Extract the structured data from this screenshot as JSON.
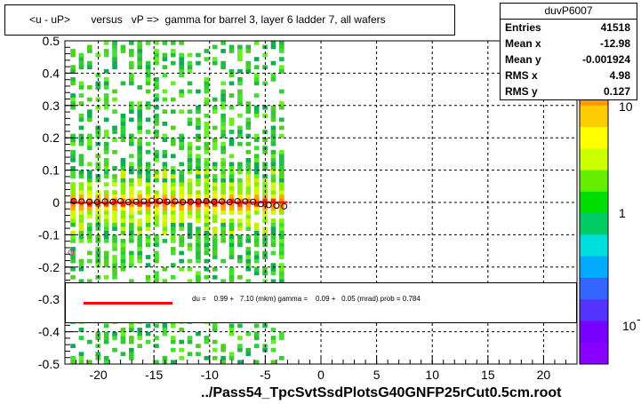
{
  "title": "<u - uP>       versus   vP =>  gamma for barrel 3, layer 6 ladder 7, all wafers",
  "footer": "../Pass54_TpcSvtSsdPlotsG40GNFP25rCut0.5cm.root",
  "stats": {
    "name": "duvP6007",
    "rows": [
      {
        "label": "Entries",
        "value": "41518"
      },
      {
        "label": "Mean x",
        "value": "-12.98"
      },
      {
        "label": "Mean y",
        "value": "-0.001924"
      },
      {
        "label": "RMS x",
        "value": "4.98"
      },
      {
        "label": "RMS y",
        "value": "0.127"
      }
    ]
  },
  "fit": {
    "text": "du =    0.99 +   7.10 (mkm) gamma =    0.09 +   0.05 (mrad) prob = 0.784",
    "line_color": "#ff0000"
  },
  "chart_data": {
    "type": "heatmap",
    "title": "<u - uP>       versus   vP =>  gamma for barrel 3, layer 6 ladder 7, all wafers",
    "xlim": [
      -23,
      23
    ],
    "ylim": [
      -0.5,
      0.5
    ],
    "x_ticks": [
      "-20",
      "-15",
      "-10",
      "-5",
      "0",
      "5",
      "10",
      "15",
      "20"
    ],
    "y_ticks": [
      "-0.5",
      "-0.4",
      "-0.3",
      "-0.2",
      "-0.1",
      "0",
      "0.1",
      "0.2",
      "0.3",
      "0.4",
      "0.5"
    ],
    "colorbar_labels": [
      "10",
      "1",
      "10"
    ],
    "colorbar_scale": "log",
    "grid": true,
    "data_x_range": [
      -22.5,
      -3
    ],
    "profile_points": {
      "x": [
        -22.2,
        -21.5,
        -20.8,
        -20.1,
        -19.4,
        -18.7,
        -18.0,
        -17.3,
        -16.6,
        -15.9,
        -15.2,
        -14.5,
        -13.8,
        -13.1,
        -12.4,
        -11.7,
        -11.0,
        -10.3,
        -9.6,
        -8.9,
        -8.2,
        -7.5,
        -6.8,
        -6.1,
        -5.4,
        -4.7,
        -4.0,
        -3.3
      ],
      "y": [
        0.004,
        0.003,
        0.002,
        0.001,
        0.003,
        0.002,
        0.004,
        0.001,
        0.002,
        0.003,
        0.005,
        0.004,
        0.002,
        0.003,
        0.001,
        0.002,
        0.003,
        0.004,
        0.002,
        0.003,
        0.001,
        0.004,
        0.003,
        0.002,
        -0.005,
        -0.008,
        -0.01,
        -0.012
      ]
    },
    "outlier_point": {
      "x": -22.6,
      "y": -0.155
    },
    "fit_line": {
      "intercept": 0.001,
      "slope": 9e-05
    }
  }
}
